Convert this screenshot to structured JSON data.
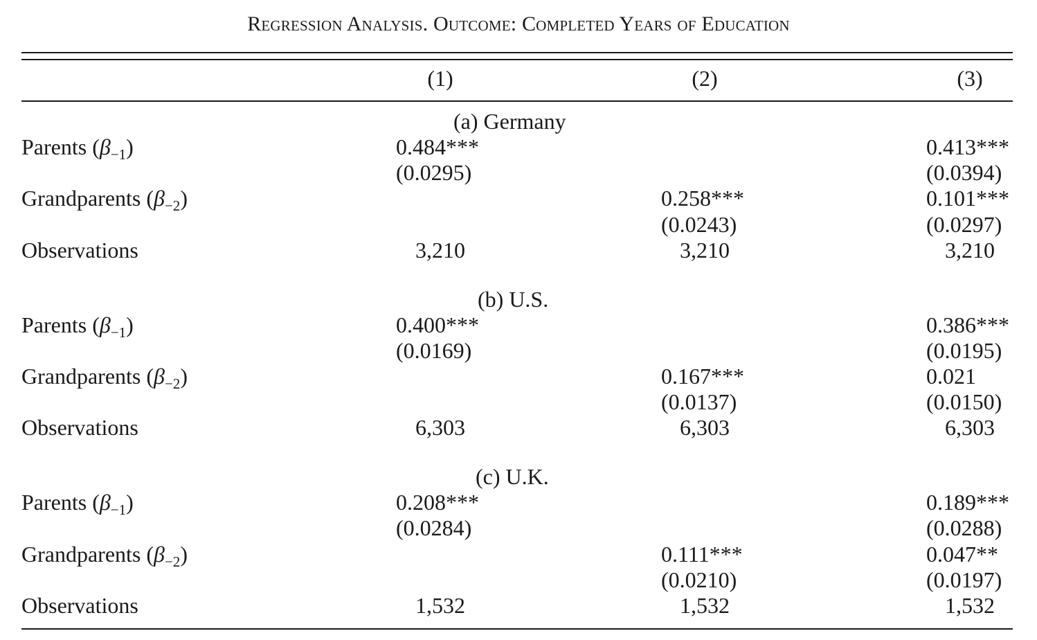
{
  "title": "Regression Analysis. Outcome: Completed Years of Education",
  "columns": [
    "(1)",
    "(2)",
    "(3)"
  ],
  "panels": [
    {
      "title": "(a) Germany",
      "parents_label": "Parents (",
      "grandparents_label": "Grandparents (",
      "observations_label": "Observations",
      "parents": {
        "c1": "0.484***",
        "c1_se": "(0.0295)",
        "c3": "0.413***",
        "c3_se": "(0.0394)"
      },
      "grandparents": {
        "c2": "0.258***",
        "c2_se": "(0.0243)",
        "c3": "0.101***",
        "c3_se": "(0.0297)"
      },
      "observations": [
        "3,210",
        "3,210",
        "3,210"
      ]
    },
    {
      "title": "(b) U.S.",
      "parents_label": "Parents (",
      "grandparents_label": "Grandparents (",
      "observations_label": "Observations",
      "parents": {
        "c1": "0.400***",
        "c1_se": "(0.0169)",
        "c3": "0.386***",
        "c3_se": "(0.0195)"
      },
      "grandparents": {
        "c2": "0.167***",
        "c2_se": "(0.0137)",
        "c3": "0.021",
        "c3_se": "(0.0150)"
      },
      "observations": [
        "6,303",
        "6,303",
        "6,303"
      ]
    },
    {
      "title": "(c) U.K.",
      "parents_label": "Parents (",
      "grandparents_label": "Grandparents (",
      "observations_label": "Observations",
      "parents": {
        "c1": "0.208***",
        "c1_se": "(0.0284)",
        "c3": "0.189***",
        "c3_se": "(0.0288)"
      },
      "grandparents": {
        "c2": "0.111***",
        "c2_se": "(0.0210)",
        "c3": "0.047**",
        "c3_se": "(0.0197)"
      },
      "observations": [
        "1,532",
        "1,532",
        "1,532"
      ]
    }
  ],
  "beta_symbol": "β",
  "sub_parents": "−1",
  "sub_grandparents": "−2"
}
